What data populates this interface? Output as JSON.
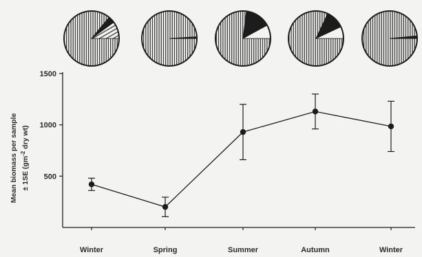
{
  "chart_data": {
    "type": "line",
    "title": "",
    "xlabel": "",
    "ylabel_lines": [
      "Mean biomass per sample",
      "± 1SE  (gm",
      "-2",
      " dry wt)"
    ],
    "categories": [
      "Winter",
      "Spring",
      "Summer",
      "Autumn",
      "Winter"
    ],
    "ylim": [
      0,
      1500
    ],
    "yticks": [
      500,
      1000,
      1500
    ],
    "grid": false,
    "series": [
      {
        "values": [
          420,
          200,
          930,
          1130,
          985
        ],
        "error": [
          60,
          95,
          270,
          170,
          245
        ]
      }
    ],
    "pies": [
      {
        "segments": [
          {
            "fill": "stripes",
            "fraction": 0.86
          },
          {
            "fill": "solid",
            "fraction": 0.04
          },
          {
            "fill": "diagonal",
            "fraction": 0.1
          }
        ]
      },
      {
        "segments": [
          {
            "fill": "stripes",
            "fraction": 0.99
          },
          {
            "fill": "solid",
            "fraction": 0.01
          }
        ]
      },
      {
        "segments": [
          {
            "fill": "stripes",
            "fraction": 0.77
          },
          {
            "fill": "solid",
            "fraction": 0.15
          },
          {
            "fill": "white",
            "fraction": 0.08
          }
        ]
      },
      {
        "segments": [
          {
            "fill": "stripes",
            "fraction": 0.82
          },
          {
            "fill": "solid",
            "fraction": 0.11
          },
          {
            "fill": "white",
            "fraction": 0.07
          }
        ]
      },
      {
        "segments": [
          {
            "fill": "stripes",
            "fraction": 0.985
          },
          {
            "fill": "solid",
            "fraction": 0.015
          }
        ]
      }
    ],
    "colors": {
      "ink": "#1c1c1c",
      "paper": "#f3f3f1",
      "stripe": "#3a3a3a"
    }
  }
}
